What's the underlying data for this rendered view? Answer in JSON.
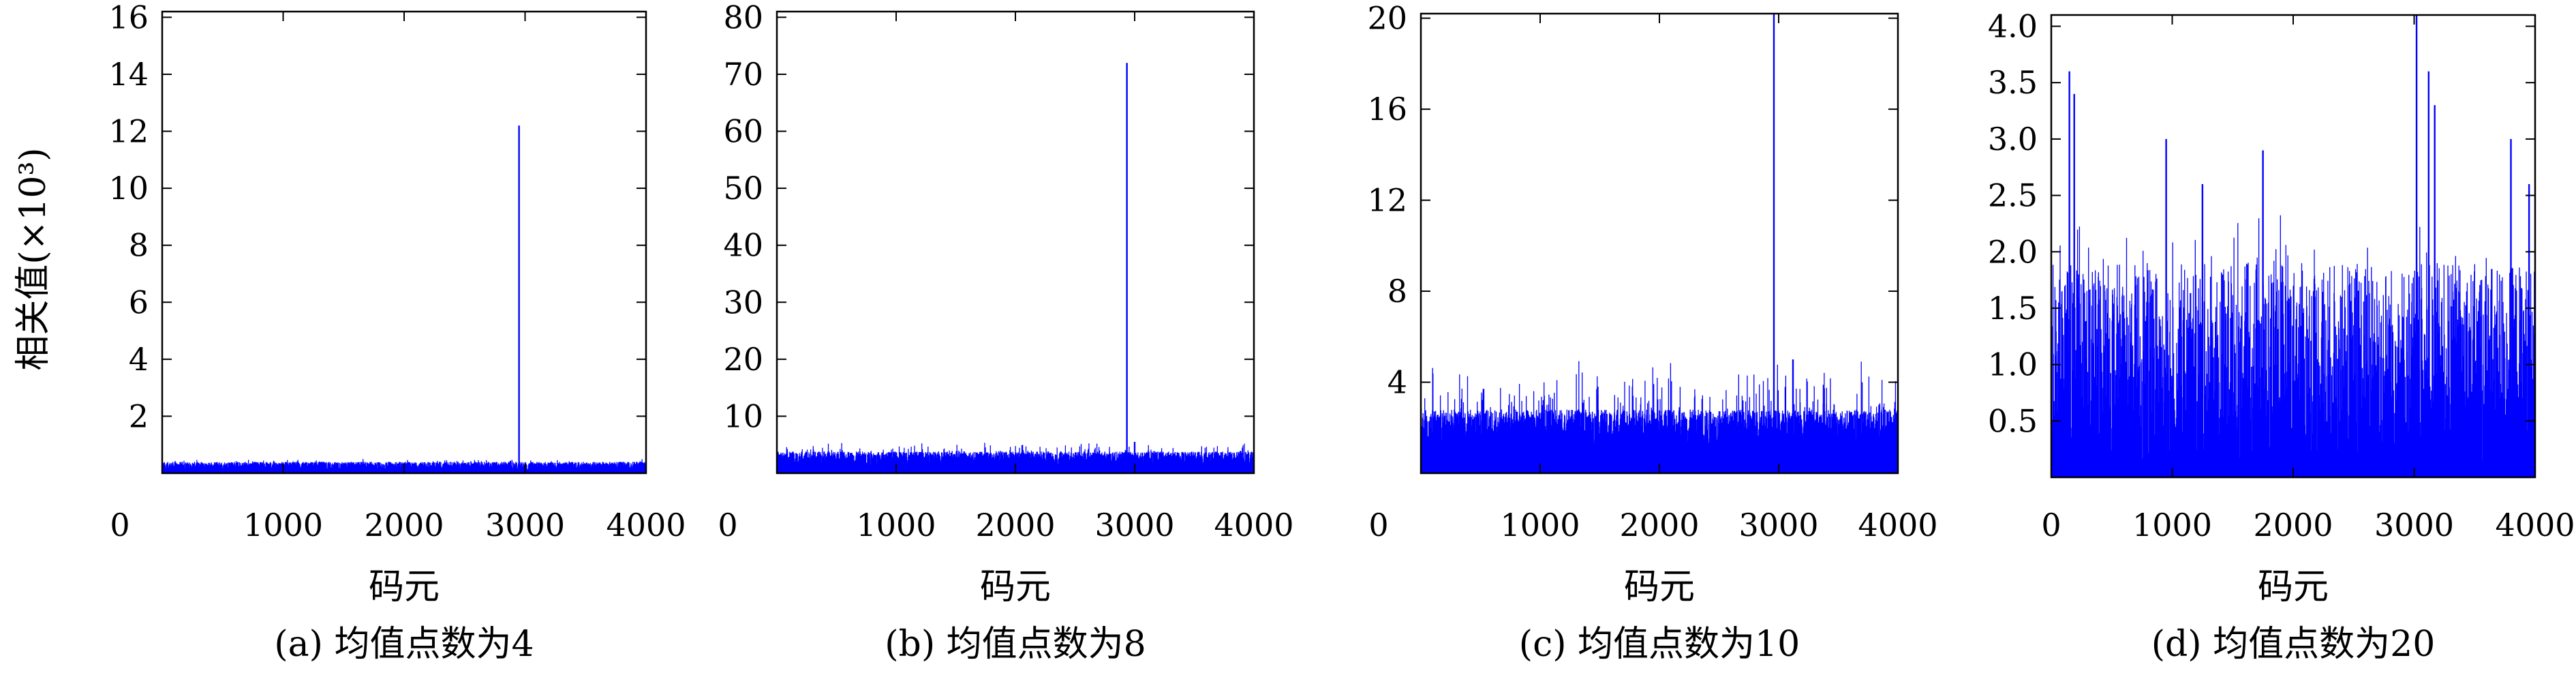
{
  "figure": {
    "ylabel": "相关值(×10³)",
    "colors": {
      "series": "#0000ff",
      "axes": "#000000"
    }
  },
  "chart_data": [
    {
      "type": "line",
      "caption": "(a) 均值点数为4",
      "xlabel": "码元",
      "ylabel": "相关值(×10³)",
      "xlim": [
        0,
        4000
      ],
      "ylim": [
        0,
        16.2
      ],
      "xticks": [
        0,
        1000,
        2000,
        3000,
        4000
      ],
      "xtick_labels": [
        "0",
        "1000",
        "2000",
        "3000",
        "4000"
      ],
      "yticks": [
        2,
        4,
        6,
        8,
        10,
        12,
        14,
        16
      ],
      "ytick_labels": [
        "2",
        "4",
        "6",
        "8",
        "10",
        "12",
        "14",
        "16"
      ],
      "grid": false,
      "noise": {
        "count": 4000,
        "base": 0.2,
        "spread": 0.2,
        "max": 0.5
      },
      "peaks": [
        {
          "x": 2950,
          "y": 12.2
        }
      ]
    },
    {
      "type": "line",
      "caption": "(b) 均值点数为8",
      "xlabel": "码元",
      "ylabel": "",
      "xlim": [
        0,
        4000
      ],
      "ylim": [
        0,
        81
      ],
      "xticks": [
        0,
        1000,
        2000,
        3000,
        4000
      ],
      "xtick_labels": [
        "0",
        "1000",
        "2000",
        "3000",
        "4000"
      ],
      "yticks": [
        10,
        20,
        30,
        40,
        50,
        60,
        70,
        80
      ],
      "ytick_labels": [
        "10",
        "20",
        "30",
        "40",
        "50",
        "60",
        "70",
        "80"
      ],
      "grid": false,
      "noise": {
        "count": 4000,
        "base": 2.2,
        "spread": 1.6,
        "max": 5.5
      },
      "peaks": [
        {
          "x": 2935,
          "y": 72
        },
        {
          "x": 3000,
          "y": 5.5
        }
      ]
    },
    {
      "type": "line",
      "caption": "(c) 均值点数为10",
      "xlabel": "码元",
      "ylabel": "",
      "xlim": [
        0,
        4000
      ],
      "ylim": [
        0,
        20.2
      ],
      "xticks": [
        0,
        1000,
        2000,
        3000,
        4000
      ],
      "xtick_labels": [
        "0",
        "1000",
        "2000",
        "3000",
        "4000"
      ],
      "yticks": [
        4,
        8,
        12,
        16,
        20
      ],
      "ytick_labels": [
        "4",
        "8",
        "12",
        "16",
        "20"
      ],
      "grid": false,
      "noise": {
        "count": 3000,
        "base": 1.9,
        "spread": 0.9,
        "max": 5.0
      },
      "peaks": [
        {
          "x": 2960,
          "y": 20.2
        },
        {
          "x": 3120,
          "y": 5.0
        }
      ]
    },
    {
      "type": "line",
      "caption": "(d) 均值点数为20",
      "xlabel": "码元",
      "ylabel": "",
      "xlim": [
        0,
        4000
      ],
      "ylim": [
        0,
        4.1
      ],
      "xticks": [
        0,
        1000,
        2000,
        3000,
        4000
      ],
      "xtick_labels": [
        "0",
        "1000",
        "2000",
        "3000",
        "4000"
      ],
      "yticks": [
        0.5,
        1.0,
        1.5,
        2.0,
        2.5,
        3.0,
        3.5,
        4.0
      ],
      "ytick_labels": [
        "0.5",
        "1.0",
        "1.5",
        "2.0",
        "2.5",
        "3.0",
        "3.5",
        "4.0"
      ],
      "grid": false,
      "noise": {
        "count": 1500,
        "base": 1.0,
        "spread": 0.9,
        "max": 2.45
      },
      "peaks": [
        {
          "x": 150,
          "y": 3.6
        },
        {
          "x": 190,
          "y": 3.4
        },
        {
          "x": 950,
          "y": 3.0
        },
        {
          "x": 1250,
          "y": 2.6
        },
        {
          "x": 1750,
          "y": 2.9
        },
        {
          "x": 3020,
          "y": 4.1
        },
        {
          "x": 3120,
          "y": 3.6
        },
        {
          "x": 3170,
          "y": 3.3
        },
        {
          "x": 3800,
          "y": 3.0
        },
        {
          "x": 3950,
          "y": 2.6
        }
      ]
    }
  ]
}
